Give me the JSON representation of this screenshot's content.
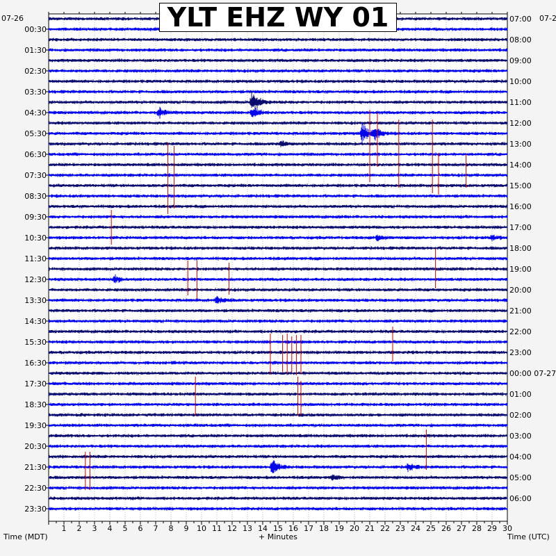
{
  "title": "YLT EHZ WY 01",
  "chart_data": {
    "type": "line",
    "title": "YLT EHZ WY 01",
    "xlabel": "+ Minutes",
    "left_axis_label": "Time (MDT)",
    "right_axis_label": "Time (UTC)",
    "x_ticks": [
      "1",
      "2",
      "3",
      "4",
      "5",
      "6",
      "7",
      "8",
      "9",
      "10",
      "11",
      "12",
      "13",
      "14",
      "15",
      "16",
      "17",
      "18",
      "19",
      "20",
      "21",
      "22",
      "23",
      "24",
      "25",
      "26",
      "27",
      "28",
      "29",
      "30"
    ],
    "xlim": [
      0,
      30
    ],
    "date_left_top": "07-26",
    "date_right_top": "07-2",
    "row_count": 48,
    "left_ticks": [
      "00:30",
      "01:30",
      "02:30",
      "03:30",
      "04:30",
      "05:30",
      "06:30",
      "07:30",
      "08:30",
      "09:30",
      "10:30",
      "11:30",
      "12:30",
      "13:30",
      "14:30",
      "15:30",
      "16:30",
      "17:30",
      "18:30",
      "19:30",
      "20:30",
      "21:30",
      "22:30",
      "23:30"
    ],
    "right_ticks": [
      "07:00",
      "08:00",
      "09:00",
      "10:00",
      "11:00",
      "12:00",
      "13:00",
      "14:00",
      "15:00",
      "16:00",
      "17:00",
      "18:00",
      "19:00",
      "20:00",
      "21:00",
      "22:00",
      "23:00",
      "00:00 07-27",
      "01:00",
      "02:00",
      "03:00",
      "04:00",
      "05:00",
      "06:00"
    ],
    "trace_colors": [
      "#0a0a6e",
      "#0000ee"
    ],
    "pick_color": "#cc0000",
    "events": [
      {
        "row": 8,
        "minute": 13.3,
        "amp": 16
      },
      {
        "row": 9,
        "minute": 13.3,
        "amp": 8
      },
      {
        "row": 9,
        "minute": 7.2,
        "amp": 6
      },
      {
        "row": 11,
        "minute": 20.5,
        "amp": 14
      },
      {
        "row": 11,
        "minute": 21.3,
        "amp": 9
      },
      {
        "row": 12,
        "minute": 15.2,
        "amp": 4
      },
      {
        "row": 21,
        "minute": 21.5,
        "amp": 4
      },
      {
        "row": 21,
        "minute": 29.0,
        "amp": 3
      },
      {
        "row": 25,
        "minute": 4.3,
        "amp": 4
      },
      {
        "row": 27,
        "minute": 11.0,
        "amp": 4
      },
      {
        "row": 43,
        "minute": 14.6,
        "amp": 10
      },
      {
        "row": 43,
        "minute": 23.5,
        "amp": 4
      },
      {
        "row": 44,
        "minute": 18.5,
        "amp": 3
      }
    ],
    "picks": [
      {
        "minute": 7.8,
        "y0": 205,
        "y1": 308
      },
      {
        "minute": 8.2,
        "y0": 210,
        "y1": 300
      },
      {
        "minute": 21.0,
        "y0": 158,
        "y1": 262
      },
      {
        "minute": 21.5,
        "y0": 162,
        "y1": 240
      },
      {
        "minute": 22.9,
        "y0": 172,
        "y1": 270
      },
      {
        "minute": 25.1,
        "y0": 172,
        "y1": 278
      },
      {
        "minute": 25.5,
        "y0": 220,
        "y1": 280
      },
      {
        "minute": 27.3,
        "y0": 222,
        "y1": 270
      },
      {
        "minute": 4.1,
        "y0": 302,
        "y1": 352
      },
      {
        "minute": 9.1,
        "y0": 375,
        "y1": 425
      },
      {
        "minute": 9.7,
        "y0": 375,
        "y1": 430
      },
      {
        "minute": 11.8,
        "y0": 378,
        "y1": 424
      },
      {
        "minute": 25.3,
        "y0": 358,
        "y1": 415
      },
      {
        "minute": 14.5,
        "y0": 480,
        "y1": 538
      },
      {
        "minute": 15.3,
        "y0": 482,
        "y1": 535
      },
      {
        "minute": 15.6,
        "y0": 480,
        "y1": 538
      },
      {
        "minute": 15.9,
        "y0": 484,
        "y1": 536
      },
      {
        "minute": 16.2,
        "y0": 482,
        "y1": 540
      },
      {
        "minute": 16.5,
        "y0": 482,
        "y1": 538
      },
      {
        "minute": 22.5,
        "y0": 470,
        "y1": 520
      },
      {
        "minute": 9.6,
        "y0": 542,
        "y1": 598
      },
      {
        "minute": 16.3,
        "y0": 542,
        "y1": 598
      },
      {
        "minute": 16.5,
        "y0": 548,
        "y1": 598
      },
      {
        "minute": 24.7,
        "y0": 618,
        "y1": 676
      },
      {
        "minute": 2.4,
        "y0": 650,
        "y1": 705
      },
      {
        "minute": 2.7,
        "y0": 650,
        "y1": 705
      }
    ]
  }
}
